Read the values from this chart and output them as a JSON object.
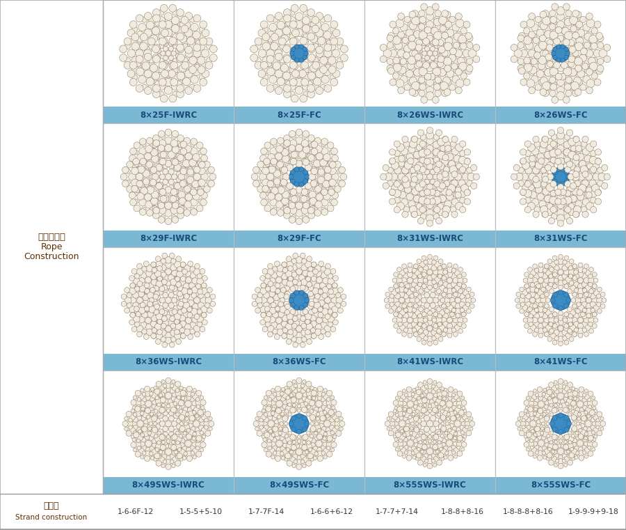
{
  "left_label_cn": "钢丝绳结构",
  "left_label_en1": "Rope",
  "left_label_en2": "Construction",
  "bottom_label_cn": "股结构",
  "bottom_label_en": "Strand construction",
  "strand_constructions": [
    "1-6-6F-12",
    "1-5-5+5-10",
    "1-7-7F-14",
    "1-6-6+6-12",
    "1-7-7+7-14",
    "1-8-8+8-16",
    "1-8-8-8+8-16",
    "1-9-9-9+9-18"
  ],
  "rope_labels": [
    [
      "8×25F-IWRC",
      "8×25F-FC",
      "8×26WS-IWRC",
      "8×26WS-FC"
    ],
    [
      "8×29F-IWRC",
      "8×29F-FC",
      "8×31WS-IWRC",
      "8×31WS-FC"
    ],
    [
      "8×36WS-IWRC",
      "8×36WS-FC",
      "8×41WS-IWRC",
      "8×41WS-FC"
    ],
    [
      "8×49SWS-IWRC",
      "8×49SWS-FC",
      "8×55SWS-IWRC",
      "8×55SWS-FC"
    ]
  ],
  "has_blue_core": [
    [
      false,
      true,
      false,
      true
    ],
    [
      false,
      true,
      false,
      true
    ],
    [
      false,
      true,
      false,
      true
    ],
    [
      false,
      true,
      false,
      true
    ]
  ],
  "label_bar_color": "#7BB8D4",
  "label_text_color": "#1A4A7A",
  "bg_color": "#FFFFFF",
  "wire_outline": "#8B7355",
  "wire_fill": "#F0EBE0",
  "wire_fill2": "#E8E0D0",
  "blue_core_color": "#3B8CC4",
  "blue_core_edge": "#2A6A9A",
  "grid_line_color": "#BBBBBB",
  "left_text_color": "#5C2E00",
  "bottom_text_color": "#333333"
}
